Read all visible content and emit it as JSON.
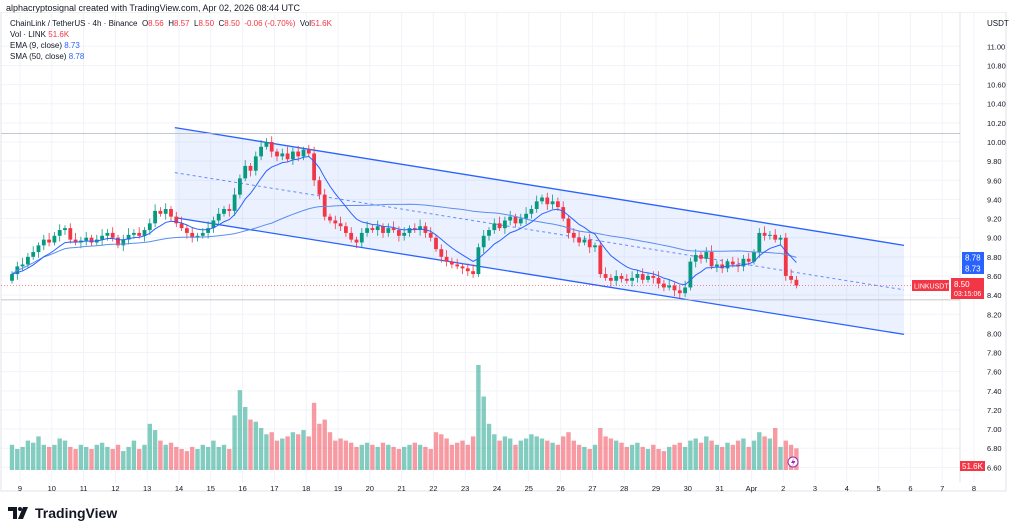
{
  "credit": "alphacryptosignal created with TradingView.com, Apr 02, 2026 08:44 UTC",
  "legend": {
    "symbol": "ChainLink / TetherUS · 4h · Binance",
    "o_label": "O",
    "o": "8.56",
    "h_label": "H",
    "h": "8.57",
    "l_label": "L",
    "l": "8.50",
    "c_label": "C",
    "c": "8.50",
    "change": "-0.06 (-0.70%)",
    "vol_label": "Vol",
    "vol": "51.6K",
    "vol_ind": "Vol · LINK",
    "vol_ind_value": "51.6K",
    "ema": "EMA (9, close)",
    "ema_value": "8.73",
    "sma": "SMA (50, close)",
    "sma_value": "8.78"
  },
  "footer": {
    "brand": "TradingView"
  },
  "colors": {
    "up": "#089981",
    "down": "#f23645",
    "channel": "#2962ff",
    "ema": "#2962ff",
    "sma": "#5b8def"
  },
  "chart_data": {
    "type": "candlestick",
    "timeframe": "4h",
    "currency_label": "USDT",
    "y_ticks": [
      "11.00",
      "10.80",
      "10.60",
      "10.40",
      "10.20",
      "10.00",
      "9.80",
      "9.60",
      "9.40",
      "9.20",
      "9.00",
      "8.80",
      "8.60",
      "8.40",
      "8.20",
      "8.00",
      "7.80",
      "7.60",
      "7.40",
      "7.20",
      "7.00",
      "6.80",
      "6.60"
    ],
    "x_ticks": [
      "9",
      "10",
      "11",
      "12",
      "13",
      "14",
      "15",
      "16",
      "17",
      "18",
      "19",
      "20",
      "21",
      "22",
      "23",
      "24",
      "25",
      "26",
      "27",
      "28",
      "29",
      "30",
      "31",
      "Apr",
      "2",
      "3",
      "4",
      "5",
      "6",
      "7",
      "8"
    ],
    "first_open": 8.55,
    "closes": [
      8.62,
      8.7,
      8.72,
      8.8,
      8.85,
      8.92,
      8.98,
      8.95,
      9.02,
      9.08,
      9.1,
      8.98,
      8.95,
      8.97,
      9.0,
      8.95,
      8.98,
      9.02,
      9.05,
      9.0,
      8.92,
      8.98,
      9.03,
      9.05,
      9.02,
      9.08,
      9.15,
      9.28,
      9.25,
      9.3,
      9.22,
      9.15,
      9.1,
      9.05,
      9.0,
      9.02,
      9.05,
      9.1,
      9.18,
      9.25,
      9.3,
      9.28,
      9.45,
      9.62,
      9.75,
      9.7,
      9.85,
      9.95,
      10.0,
      9.9,
      9.85,
      9.88,
      9.82,
      9.9,
      9.85,
      9.92,
      9.88,
      9.6,
      9.45,
      9.22,
      9.18,
      9.15,
      9.12,
      9.05,
      8.98,
      8.95,
      9.05,
      9.1,
      9.08,
      9.12,
      9.05,
      9.1,
      9.08,
      9.02,
      9.05,
      9.1,
      9.08,
      9.12,
      9.05,
      9.0,
      8.88,
      8.8,
      8.75,
      8.72,
      8.7,
      8.68,
      8.65,
      8.62,
      8.9,
      9.02,
      9.08,
      9.15,
      9.1,
      9.18,
      9.22,
      9.15,
      9.2,
      9.25,
      9.3,
      9.38,
      9.42,
      9.35,
      9.38,
      9.32,
      9.2,
      9.05,
      9.0,
      8.95,
      8.98,
      8.9,
      8.92,
      8.62,
      8.58,
      8.55,
      8.6,
      8.57,
      8.55,
      8.58,
      8.62,
      8.56,
      8.6,
      8.58,
      8.52,
      8.48,
      8.5,
      8.45,
      8.42,
      8.48,
      8.75,
      8.82,
      8.78,
      8.85,
      8.7,
      8.72,
      8.68,
      8.75,
      8.72,
      8.7,
      8.78,
      8.75,
      8.85,
      9.05,
      9.02,
      9.03,
      8.98,
      9.0,
      8.6,
      8.56,
      8.5
    ],
    "volumes_k": [
      60,
      50,
      55,
      70,
      65,
      80,
      60,
      55,
      60,
      75,
      70,
      55,
      50,
      60,
      55,
      50,
      60,
      65,
      55,
      50,
      60,
      45,
      55,
      70,
      50,
      60,
      110,
      95,
      70,
      60,
      65,
      55,
      50,
      45,
      55,
      50,
      60,
      55,
      70,
      55,
      60,
      50,
      130,
      190,
      150,
      120,
      115,
      100,
      85,
      90,
      70,
      75,
      80,
      90,
      85,
      95,
      80,
      160,
      110,
      120,
      90,
      70,
      75,
      70,
      65,
      55,
      60,
      65,
      60,
      55,
      65,
      60,
      55,
      50,
      55,
      60,
      65,
      60,
      55,
      50,
      90,
      85,
      75,
      60,
      65,
      70,
      60,
      80,
      250,
      175,
      110,
      85,
      70,
      80,
      75,
      60,
      70,
      75,
      85,
      80,
      75,
      70,
      65,
      60,
      80,
      90,
      70,
      60,
      55,
      50,
      60,
      100,
      80,
      75,
      70,
      65,
      55,
      60,
      65,
      55,
      50,
      60,
      50,
      45,
      55,
      60,
      65,
      55,
      70,
      75,
      65,
      80,
      70,
      60,
      55,
      65,
      60,
      70,
      75,
      55,
      70,
      90,
      80,
      75,
      100,
      55,
      70,
      60,
      51.6
    ],
    "indicators": [
      "EMA 9 close",
      "SMA 50 close"
    ],
    "channel": {
      "start_day": 13.87,
      "end_day": 36.8,
      "upper": [
        10.15,
        8.92
      ],
      "lower": [
        9.21,
        7.99
      ]
    },
    "horizontal_levels": [
      10.09,
      8.35
    ],
    "last_price": "8.50",
    "countdown": "03:15:06",
    "symbol_tag": "LINKUSDT",
    "ema_tag": "8.73",
    "sma_tag": "8.78",
    "price_label_near": "8.60",
    "volume_tag": "51.6K"
  }
}
